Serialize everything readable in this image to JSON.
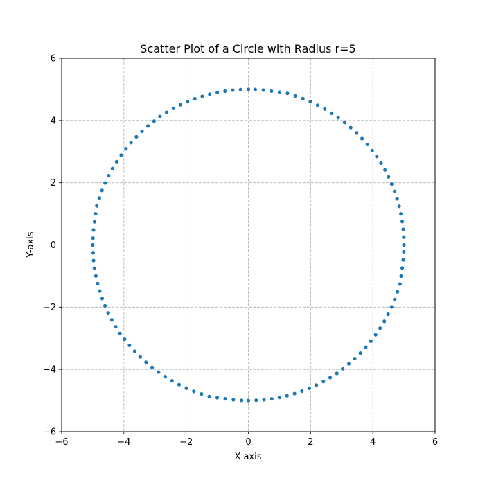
{
  "chart_data": {
    "type": "scatter",
    "title": "Scatter Plot of a Circle with Radius r=5",
    "xlabel": "X-axis",
    "ylabel": "Y-axis",
    "xlim": [
      -6,
      6
    ],
    "ylim": [
      -6,
      6
    ],
    "xticks": [
      -6,
      -4,
      -2,
      0,
      2,
      4,
      6
    ],
    "yticks": [
      -6,
      -4,
      -2,
      0,
      2,
      4,
      6
    ],
    "xtick_labels": [
      "−6",
      "−4",
      "−2",
      "0",
      "2",
      "4",
      "6"
    ],
    "ytick_labels": [
      "−6",
      "−4",
      "−2",
      "0",
      "2",
      "4",
      "6"
    ],
    "grid": true,
    "grid_style": "dashed",
    "aspect": "equal",
    "series": [
      {
        "color": "#1f77b4",
        "points": [
          [
            5.0,
            0.0
          ],
          [
            4.994,
            0.251
          ],
          [
            4.975,
            0.502
          ],
          [
            4.944,
            0.751
          ],
          [
            4.901,
            0.998
          ],
          [
            4.845,
            1.242
          ],
          [
            4.777,
            1.483
          ],
          [
            4.698,
            1.722
          ],
          [
            4.606,
            1.956
          ],
          [
            4.504,
            2.186
          ],
          [
            4.389,
            2.41
          ],
          [
            4.263,
            2.629
          ],
          [
            4.127,
            2.843
          ],
          [
            3.979,
            3.03
          ],
          [
            3.821,
            3.227
          ],
          [
            3.653,
            3.417
          ],
          [
            3.476,
            3.598
          ],
          [
            3.288,
            3.771
          ],
          [
            3.092,
            3.935
          ],
          [
            2.888,
            4.089
          ],
          [
            2.675,
            4.233
          ],
          [
            2.455,
            4.368
          ],
          [
            2.227,
            4.49
          ],
          [
            1.992,
            4.603
          ],
          [
            1.752,
            4.703
          ],
          [
            1.506,
            4.79
          ],
          [
            1.256,
            4.872
          ],
          [
            1.001,
            4.909
          ],
          [
            0.743,
            4.944
          ],
          [
            0.482,
            4.977
          ],
          [
            0.219,
            4.995
          ],
          [
            0.0,
            5.0
          ],
          [
            -0.251,
            4.991
          ],
          [
            -0.502,
            4.975
          ],
          [
            -0.751,
            4.944
          ],
          [
            -0.998,
            4.901
          ],
          [
            -1.242,
            4.845
          ],
          [
            -1.483,
            4.777
          ],
          [
            -1.722,
            4.698
          ],
          [
            -1.956,
            4.606
          ],
          [
            -2.186,
            4.504
          ],
          [
            -2.41,
            4.389
          ],
          [
            -2.629,
            4.263
          ],
          [
            -2.843,
            4.127
          ],
          [
            -3.03,
            3.979
          ],
          [
            -3.227,
            3.821
          ],
          [
            -3.417,
            3.653
          ],
          [
            -3.598,
            3.476
          ],
          [
            -3.771,
            3.288
          ],
          [
            -3.935,
            3.092
          ],
          [
            -4.089,
            2.888
          ],
          [
            -4.233,
            2.675
          ],
          [
            -4.368,
            2.455
          ],
          [
            -4.49,
            2.227
          ],
          [
            -4.603,
            1.992
          ],
          [
            -4.703,
            1.752
          ],
          [
            -4.79,
            1.506
          ],
          [
            -4.872,
            1.256
          ],
          [
            -4.909,
            1.001
          ],
          [
            -4.944,
            0.743
          ],
          [
            -4.977,
            0.482
          ],
          [
            -4.995,
            0.219
          ],
          [
            -5.0,
            0.0
          ],
          [
            -4.991,
            -0.251
          ],
          [
            -4.975,
            -0.502
          ],
          [
            -4.944,
            -0.751
          ],
          [
            -4.901,
            -0.998
          ],
          [
            -4.845,
            -1.242
          ],
          [
            -4.777,
            -1.483
          ],
          [
            -4.698,
            -1.722
          ],
          [
            -4.606,
            -1.956
          ],
          [
            -4.504,
            -2.186
          ],
          [
            -4.389,
            -2.41
          ],
          [
            -4.263,
            -2.629
          ],
          [
            -4.127,
            -2.843
          ],
          [
            -3.979,
            -3.03
          ],
          [
            -3.821,
            -3.227
          ],
          [
            -3.653,
            -3.417
          ],
          [
            -3.476,
            -3.598
          ],
          [
            -3.288,
            -3.771
          ],
          [
            -3.092,
            -3.935
          ],
          [
            -2.888,
            -4.089
          ],
          [
            -2.675,
            -4.233
          ],
          [
            -2.455,
            -4.368
          ],
          [
            -2.227,
            -4.49
          ],
          [
            -1.992,
            -4.603
          ],
          [
            -1.752,
            -4.703
          ],
          [
            -1.506,
            -4.79
          ],
          [
            -1.256,
            -4.872
          ],
          [
            -1.001,
            -4.909
          ],
          [
            -0.743,
            -4.944
          ],
          [
            -0.482,
            -4.977
          ],
          [
            -0.219,
            -4.995
          ],
          [
            0.0,
            -5.0
          ],
          [
            0.251,
            -4.991
          ],
          [
            0.502,
            -4.975
          ],
          [
            0.751,
            -4.944
          ],
          [
            0.998,
            -4.901
          ],
          [
            1.242,
            -4.845
          ],
          [
            1.483,
            -4.777
          ],
          [
            1.722,
            -4.698
          ],
          [
            1.956,
            -4.606
          ],
          [
            2.186,
            -4.504
          ],
          [
            2.41,
            -4.389
          ],
          [
            2.629,
            -4.263
          ],
          [
            2.843,
            -4.127
          ],
          [
            3.03,
            -3.979
          ],
          [
            3.227,
            -3.821
          ],
          [
            3.417,
            -3.653
          ],
          [
            3.598,
            -3.476
          ],
          [
            3.771,
            -3.288
          ],
          [
            3.935,
            -3.092
          ],
          [
            4.089,
            -2.888
          ],
          [
            4.233,
            -2.675
          ],
          [
            4.368,
            -2.455
          ],
          [
            4.49,
            -2.227
          ],
          [
            4.603,
            -1.992
          ],
          [
            4.703,
            -1.752
          ],
          [
            4.79,
            -1.506
          ],
          [
            4.872,
            -1.256
          ],
          [
            4.909,
            -1.001
          ],
          [
            4.944,
            -0.743
          ],
          [
            4.977,
            -0.482
          ],
          [
            4.995,
            -0.219
          ]
        ]
      }
    ]
  }
}
